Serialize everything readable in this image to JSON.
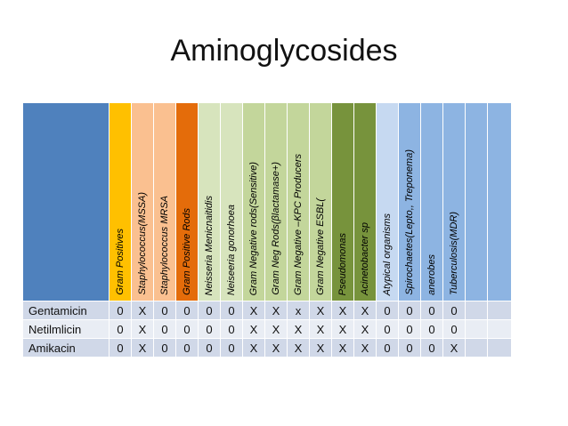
{
  "title": "Aminoglycosides",
  "colors": {
    "corner": "#4f81bd",
    "blank_header": "#8db4e2",
    "row_dark": "#d0d8e8",
    "row_light": "#e9edf4"
  },
  "columns": [
    {
      "label": "Gram Positives",
      "color": "#ffc000"
    },
    {
      "label": "Staphylococcus(MSSA)",
      "color": "#fac090"
    },
    {
      "label": "Staphylococcus MRSA",
      "color": "#fac090"
    },
    {
      "label": "Gram Positive Rods",
      "color": "#e46c0a"
    },
    {
      "label": "Neisseria Menicnaitidis",
      "color": "#d7e4bd"
    },
    {
      "label": "Neiseeria gonorhoea",
      "color": "#d7e4bd"
    },
    {
      "label": "Gram Negative rods(Sensitive)",
      "color": "#c3d69b"
    },
    {
      "label": "Gram Neg Rods(βlactamase+)",
      "color": "#c3d69b"
    },
    {
      "label": "Gram Negative –KPC Producers",
      "color": "#c3d69b"
    },
    {
      "label": "Gram Negative ESBL(",
      "color": "#c3d69b"
    },
    {
      "label": "Pseudomonas",
      "color": "#77933c"
    },
    {
      "label": "Acinetobacter sp",
      "color": "#77933c"
    },
    {
      "label": "Atypical organisms",
      "color": "#c6d9f1"
    },
    {
      "label": "Spirochaetes(Lepto,, Treponema)",
      "color": "#8db4e2"
    },
    {
      "label": "anerobes",
      "color": "#8db4e2"
    },
    {
      "label": "Tuberculosis(MDR)",
      "color": "#8db4e2"
    }
  ],
  "rows": [
    {
      "drug": "Gentamicin",
      "values": [
        "0",
        "X",
        "0",
        "0",
        "0",
        "0",
        "X",
        "X",
        "x",
        "X",
        "X",
        "X",
        "0",
        "0",
        "0",
        "0",
        "",
        ""
      ]
    },
    {
      "drug": "Netilmlicin",
      "values": [
        "0",
        "X",
        "0",
        "0",
        "0",
        "0",
        "X",
        "X",
        "X",
        "X",
        "X",
        "X",
        "0",
        "0",
        "0",
        "0",
        "",
        ""
      ]
    },
    {
      "drug": "Amikacin",
      "values": [
        "0",
        "X",
        "0",
        "0",
        "0",
        "0",
        "X",
        "X",
        "X",
        "X",
        "X",
        "X",
        "0",
        "0",
        "0",
        "X",
        "",
        ""
      ]
    }
  ]
}
